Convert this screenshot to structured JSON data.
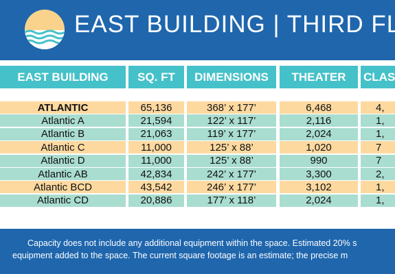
{
  "header": {
    "title": "EAST BUILDING | THIRD FLO",
    "logo_icon": "sun-over-waves-icon",
    "colors": {
      "bar": "#1f66ad",
      "sun": "#f9d38c",
      "waves": "#45c1c9"
    }
  },
  "table": {
    "columns": [
      "EAST BUILDING",
      "SQ. FT",
      "DIMENSIONS",
      "THEATER",
      "CLAS"
    ],
    "rows": [
      {
        "name": "ATLANTIC",
        "sqft": "65,136",
        "dims": "368’ x 177’",
        "theater": "6,468",
        "class": "4,",
        "bold": true,
        "tone": "peach"
      },
      {
        "name": "Atlantic A",
        "sqft": "21,594",
        "dims": "122’ x 117’",
        "theater": "2,116",
        "class": "1,",
        "tone": "mint"
      },
      {
        "name": "Atlantic B",
        "sqft": "21,063",
        "dims": "119’ x 177’",
        "theater": "2,024",
        "class": "1,",
        "tone": "mint"
      },
      {
        "name": "Atlantic C",
        "sqft": "11,000",
        "dims": "125’ x 88’",
        "theater": "1,020",
        "class": "7",
        "tone": "peach"
      },
      {
        "name": "Atlantic D",
        "sqft": "11,000",
        "dims": "125’ x 88’",
        "theater": "990",
        "class": "7",
        "tone": "mint"
      },
      {
        "name": "Atlantic AB",
        "sqft": "42,834",
        "dims": "242’ x 177’",
        "theater": "3,300",
        "class": "2,",
        "tone": "mint"
      },
      {
        "name": "Atlantic BCD",
        "sqft": "43,542",
        "dims": "246’ x 177’",
        "theater": "3,102",
        "class": "1,",
        "tone": "peach"
      },
      {
        "name": "Atlantic CD",
        "sqft": "20,886",
        "dims": "177’ x 118’",
        "theater": "2,024",
        "class": "1,",
        "tone": "mint"
      }
    ],
    "colors": {
      "header": "#45c1c9",
      "peach": "#fdd9a0",
      "mint": "#a9ddd0"
    }
  },
  "footer": {
    "line1": "Capacity does not include any additional equipment within the space. Estimated 20% s",
    "line2": "equipment added to the space. The current square footage is an estimate; the precise m"
  }
}
